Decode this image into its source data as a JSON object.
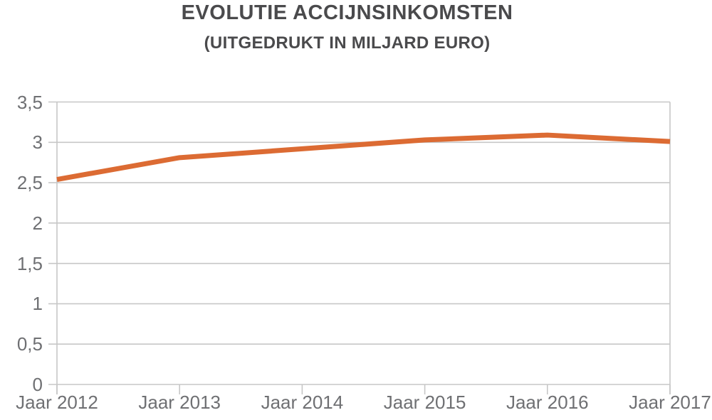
{
  "chart_data": {
    "type": "line",
    "title": "EVOLUTIE ACCIJNSINKOMSTEN",
    "subtitle": "(UITGEDRUKT IN MILJARD EURO)",
    "categories": [
      "Jaar 2012",
      "Jaar 2013",
      "Jaar 2014",
      "Jaar 2015",
      "Jaar 2016",
      "Jaar 2017"
    ],
    "values": [
      2.54,
      2.81,
      2.92,
      3.03,
      3.09,
      3.01
    ],
    "xlabel": "",
    "ylabel": "",
    "ylim": [
      0,
      3.5
    ],
    "yticks": [
      0,
      0.5,
      1,
      1.5,
      2,
      2.5,
      3,
      3.5
    ],
    "ytick_labels": [
      "0",
      "0,5",
      "1",
      "1,5",
      "2",
      "2,5",
      "3",
      "3,5"
    ],
    "grid": true,
    "legend": "none",
    "line_color": "#DC6B33",
    "grid_color": "#C7C7C7",
    "title_color": "#4A4A4C",
    "label_color": "#6F7073"
  }
}
